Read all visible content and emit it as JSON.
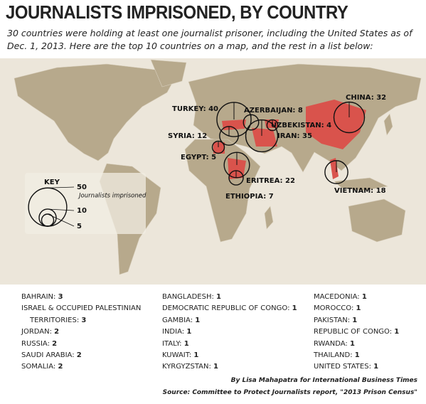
{
  "header": {
    "title": "JOURNALISTS IMPRISONED, BY COUNTRY",
    "subtitle": "30 countries were holding at least one journalist prisoner, including the United States as of Dec. 1, 2013. Here are the top 10 countries on a map, and the rest in a list below:"
  },
  "map": {
    "countries": [
      {
        "name": "TURKEY:",
        "value": 40
      },
      {
        "name": "AZERBAIJAN:",
        "value": 8
      },
      {
        "name": "UZBEKISTAN:",
        "value": 4
      },
      {
        "name": "SYRIA:",
        "value": 12
      },
      {
        "name": "IRAN:",
        "value": 35
      },
      {
        "name": "EGYPT:",
        "value": 5
      },
      {
        "name": "ERITREA:",
        "value": 22
      },
      {
        "name": "ETHIOPIA:",
        "value": 7
      },
      {
        "name": "CHINA:",
        "value": 32
      },
      {
        "name": "VIETNAM:",
        "value": 18
      }
    ],
    "key": {
      "title": "KEY",
      "caption": "Journalists imprisoned",
      "sizes": [
        50,
        10,
        5
      ]
    }
  },
  "list": [
    [
      {
        "name": "BAHRAIN:",
        "value": 3
      },
      {
        "name": "ISRAEL & OCCUPIED PALESTINIAN TERRITORIES:",
        "value": 3
      },
      {
        "name": "JORDAN:",
        "value": 2
      },
      {
        "name": "RUSSIA:",
        "value": 2
      },
      {
        "name": "SAUDI ARABIA:",
        "value": 2
      },
      {
        "name": "SOMALIA:",
        "value": 2
      }
    ],
    [
      {
        "name": "BANGLADESH:",
        "value": 1
      },
      {
        "name": "DEMOCRATIC REPUBLIC OF CONGO:",
        "value": 1
      },
      {
        "name": "GAMBIA:",
        "value": 1
      },
      {
        "name": "INDIA:",
        "value": 1
      },
      {
        "name": "ITALY:",
        "value": 1
      },
      {
        "name": "KUWAIT:",
        "value": 1
      },
      {
        "name": "KYRGYZSTAN:",
        "value": 1
      }
    ],
    [
      {
        "name": "MACEDONIA:",
        "value": 1
      },
      {
        "name": "MOROCCO:",
        "value": 1
      },
      {
        "name": "PAKISTAN:",
        "value": 1
      },
      {
        "name": "REPUBLIC OF CONGO:",
        "value": 1
      },
      {
        "name": "RWANDA:",
        "value": 1
      },
      {
        "name": "THAILAND:",
        "value": 1
      },
      {
        "name": "UNITED STATES:",
        "value": 1
      }
    ]
  ],
  "credits": {
    "byline": "By Lisa Mahapatra for International Business Times",
    "source": "Source: Committee to Protect Journalists report, \"2013 Prison Census\""
  }
}
